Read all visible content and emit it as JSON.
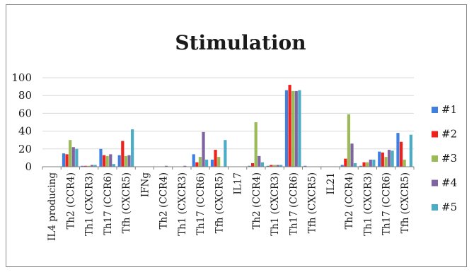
{
  "chart_data": {
    "type": "bar",
    "title": "Stimulation",
    "xlabel": "",
    "ylabel": "",
    "ylim": [
      0,
      100
    ],
    "yticks": [
      0,
      20,
      40,
      60,
      80,
      100
    ],
    "categories": [
      "IL4 producing",
      "Th2 (CCR4)",
      "Th1 (CXCR3)",
      "Th17 (CCR6)",
      "Tfh (CXCR5)",
      "IFNg",
      "Th2 (CCR4)",
      "Th1 (CXCR3)",
      "Th17 (CCR6)",
      "Tfh (CXCR5)",
      "IL17",
      "Th2 (CCR4)",
      "Th1 (CXCR3)",
      "Th17 (CCR6)",
      "Tfh (CXCR5)",
      "IL21",
      "Th2 (CCR4)",
      "Th1 (CXCR3)",
      "Th17 (CCR6)",
      "Tfh (CXCR5)"
    ],
    "series": [
      {
        "name": "#1",
        "color": "#3F7FE0",
        "values": [
          0,
          15,
          1,
          20,
          13,
          0,
          0,
          0,
          14,
          8,
          0,
          1,
          1,
          86,
          1,
          0,
          2,
          1,
          17,
          38
        ]
      },
      {
        "name": "#2",
        "color": "#F0201A",
        "values": [
          0,
          14,
          1,
          13,
          29,
          0,
          0,
          0,
          5,
          19,
          0,
          4,
          2,
          92,
          0,
          0,
          9,
          5,
          16,
          28
        ]
      },
      {
        "name": "#3",
        "color": "#9BBB59",
        "values": [
          0,
          30,
          1,
          12,
          12,
          0,
          0,
          0,
          11,
          11,
          0,
          50,
          2,
          85,
          0,
          0,
          59,
          5,
          11,
          8
        ]
      },
      {
        "name": "#4",
        "color": "#8064A2",
        "values": [
          0,
          22,
          2,
          14,
          13,
          0,
          1,
          1,
          39,
          0,
          0,
          12,
          2,
          85,
          0,
          0,
          26,
          8,
          19,
          0
        ]
      },
      {
        "name": "#5",
        "color": "#4BACC6",
        "values": [
          0,
          20,
          2,
          3,
          42,
          0,
          0,
          0,
          8,
          30,
          0,
          5,
          2,
          86,
          0,
          0,
          4,
          8,
          18,
          36
        ]
      }
    ],
    "legend": {
      "position": "right",
      "entries": [
        "#1",
        "#2",
        "#3",
        "#4",
        "#5"
      ]
    },
    "grid": true
  }
}
